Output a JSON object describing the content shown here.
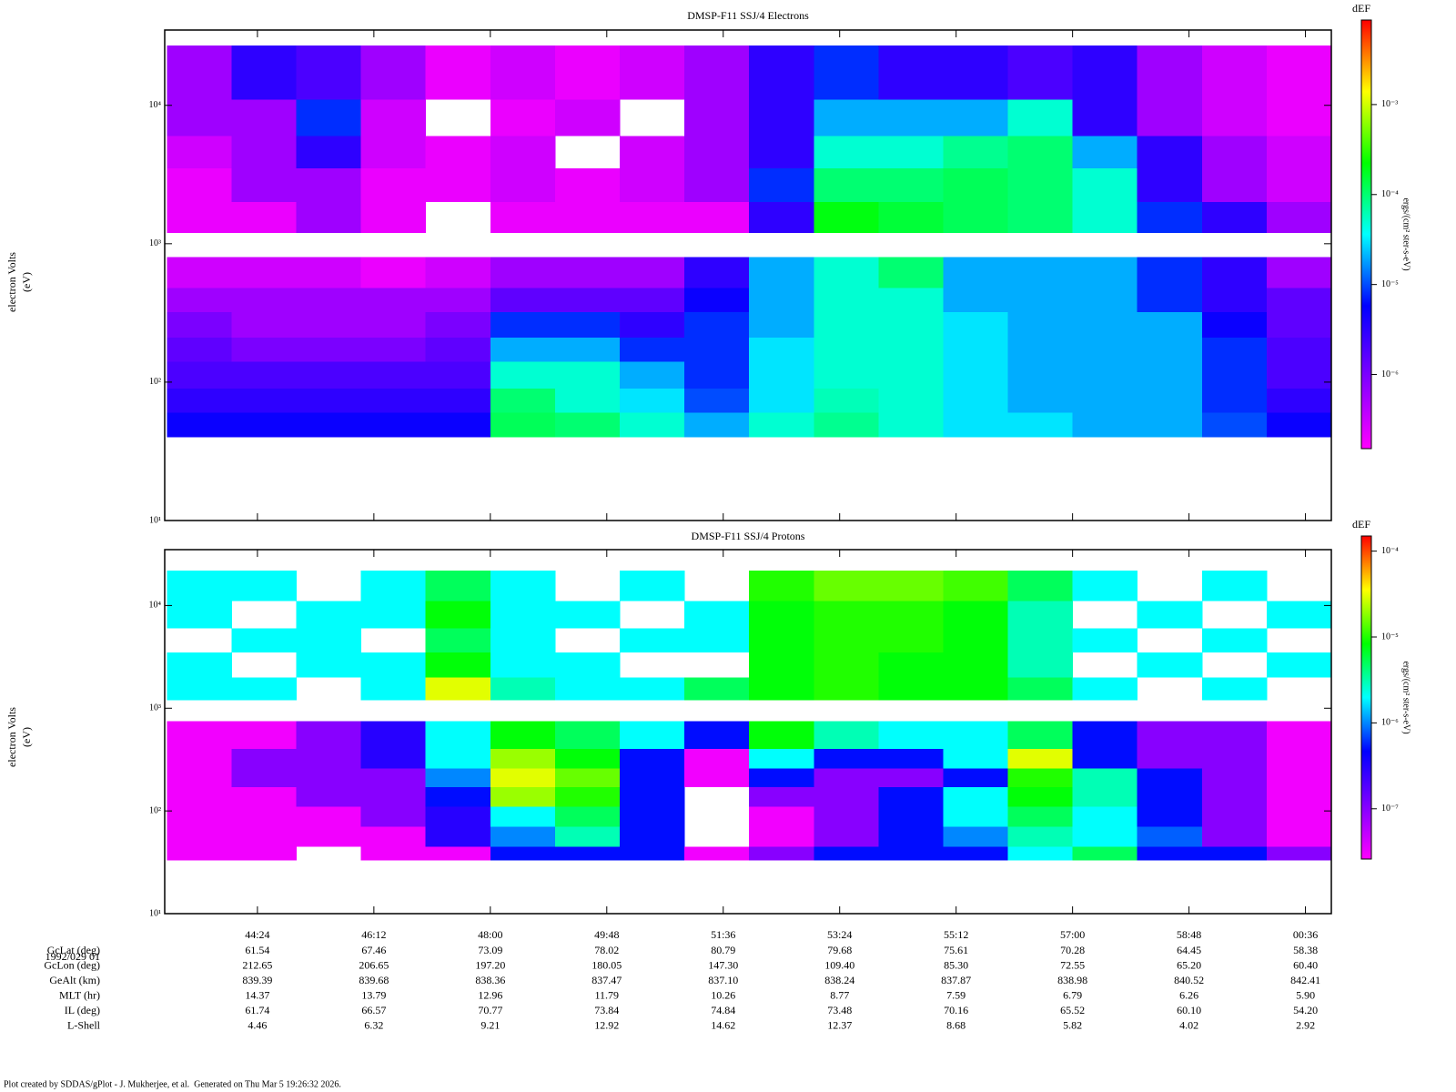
{
  "chart_data": [
    {
      "type": "spectrogram",
      "title": "DMSP-F11 SSJ/4 Electrons",
      "ylabel": [
        "electron Volts",
        "(eV)"
      ],
      "log_y": true,
      "xlim": [
        2578,
        3660
      ],
      "xticks": [
        2664,
        2772,
        2880,
        2988,
        3096,
        3204,
        3312,
        3420,
        3528,
        3636
      ],
      "ylim": [
        10,
        35000
      ],
      "yticks": [
        {
          "value": 10,
          "label": "10¹"
        },
        {
          "value": 100,
          "label": "10²"
        },
        {
          "value": 1000,
          "label": "10³"
        },
        {
          "value": 10000,
          "label": "10⁴"
        }
      ],
      "xbins": [
        2580,
        2640,
        2700,
        2760,
        2820,
        2880,
        2940,
        3000,
        3060,
        3120,
        3180,
        3240,
        3300,
        3360,
        3420,
        3480,
        3540,
        3600,
        3660
      ],
      "ybins": [
        [
          40,
          60
        ],
        [
          60,
          90
        ],
        [
          90,
          140
        ],
        [
          140,
          210
        ],
        [
          210,
          320
        ],
        [
          320,
          480
        ],
        [
          480,
          800
        ],
        [
          1200,
          2000
        ],
        [
          2000,
          3500
        ],
        [
          3500,
          6000
        ],
        [
          6000,
          11000
        ],
        [
          11000,
          27000
        ]
      ],
      "z": [
        [
          5e-06,
          5e-06,
          5e-06,
          5e-06,
          5e-06,
          0.00012,
          0.0001,
          5e-05,
          2e-05,
          5e-05,
          8e-05,
          5e-05,
          3e-05,
          3e-05,
          2e-05,
          2e-05,
          1e-05,
          5e-06
        ],
        [
          3e-06,
          3e-06,
          3e-06,
          3e-06,
          3e-06,
          0.0001,
          5e-05,
          3e-05,
          1e-05,
          3e-05,
          6e-05,
          5e-05,
          3e-05,
          2e-05,
          2e-05,
          2e-05,
          8e-06,
          3e-06
        ],
        [
          2e-06,
          2e-06,
          2e-06,
          2e-06,
          2e-06,
          5e-05,
          5e-05,
          2e-05,
          8e-06,
          3e-05,
          5e-05,
          5e-05,
          3e-05,
          2e-05,
          2e-05,
          2e-05,
          8e-06,
          2e-06
        ],
        [
          1.5e-06,
          1e-06,
          1e-06,
          1e-06,
          1.5e-06,
          2e-05,
          2e-05,
          8e-06,
          8e-06,
          3e-05,
          5e-05,
          5e-05,
          3e-05,
          2e-05,
          2e-05,
          2e-05,
          8e-06,
          2e-06
        ],
        [
          1e-06,
          6e-07,
          6e-07,
          6e-07,
          1e-06,
          8e-06,
          8e-06,
          3e-06,
          8e-06,
          2e-05,
          5e-05,
          5e-05,
          3e-05,
          2e-05,
          2e-05,
          2e-05,
          5e-06,
          1.5e-06
        ],
        [
          6e-07,
          6e-07,
          6e-07,
          6e-07,
          6e-07,
          1.5e-06,
          1.5e-06,
          1.5e-06,
          5e-06,
          2e-05,
          5e-05,
          5e-05,
          2e-05,
          2e-05,
          2e-05,
          8e-06,
          3e-06,
          1.5e-06
        ],
        [
          3e-07,
          3e-07,
          3e-07,
          2e-07,
          3e-07,
          6e-07,
          6e-07,
          6e-07,
          3e-06,
          2e-05,
          5e-05,
          0.0001,
          2e-05,
          2e-05,
          2e-05,
          8e-06,
          3e-06,
          6e-07
        ],
        [
          2e-07,
          2e-07,
          6e-07,
          2e-07,
          null,
          2e-07,
          2e-07,
          2e-07,
          2e-07,
          3e-06,
          0.0002,
          0.00015,
          0.00012,
          0.0001,
          5e-05,
          8e-06,
          3e-06,
          6e-07
        ],
        [
          2e-07,
          6e-07,
          6e-07,
          2e-07,
          2e-07,
          3e-07,
          2e-07,
          3e-07,
          6e-07,
          8e-06,
          0.0001,
          0.0001,
          0.00012,
          0.0001,
          5e-05,
          3e-06,
          6e-07,
          3e-07
        ],
        [
          3e-07,
          6e-07,
          3e-06,
          3e-07,
          2e-07,
          3e-07,
          null,
          3e-07,
          6e-07,
          3e-06,
          5e-05,
          5e-05,
          8e-05,
          0.0001,
          2e-05,
          3e-06,
          6e-07,
          3e-07
        ],
        [
          6e-07,
          6e-07,
          8e-06,
          3e-07,
          null,
          2e-07,
          3e-07,
          null,
          6e-07,
          3e-06,
          2e-05,
          2e-05,
          2e-05,
          5e-05,
          3e-06,
          6e-07,
          3e-07,
          2e-07
        ],
        [
          6e-07,
          3e-06,
          2e-06,
          6e-07,
          2e-07,
          3e-07,
          2e-07,
          3e-07,
          6e-07,
          3e-06,
          8e-06,
          3e-06,
          3e-06,
          2e-06,
          3e-06,
          6e-07,
          3e-07,
          2e-07
        ]
      ],
      "colorbar": {
        "label": "dEF",
        "title": "ergs/(cm² ster-s-eV)",
        "zlim": [
          1.5e-07,
          0.0087
        ],
        "log": true,
        "ticks": [
          {
            "value": 0.001,
            "label": "10⁻³"
          },
          {
            "value": 0.0001,
            "label": "10⁻⁴"
          },
          {
            "value": 1e-05,
            "label": "10⁻⁵"
          },
          {
            "value": 1e-06,
            "label": "10⁻⁶"
          }
        ],
        "colors": [
          "#ff00ff",
          "#8000ff",
          "#0000ff",
          "#00ffff",
          "#00ff00",
          "#ffff00",
          "#ff0000"
        ]
      }
    },
    {
      "type": "spectrogram",
      "title": "DMSP-F11 SSJ/4 Protons",
      "ylabel": [
        "electron Volts",
        "(eV)"
      ],
      "log_y": true,
      "xlim": [
        2578,
        3660
      ],
      "xticks": [
        {
          "value": 2664,
          "label": "44:24"
        },
        {
          "value": 2772,
          "label": "46:12"
        },
        {
          "value": 2880,
          "label": "48:00"
        },
        {
          "value": 2988,
          "label": "49:48"
        },
        {
          "value": 3096,
          "label": "51:36"
        },
        {
          "value": 3204,
          "label": "53:24"
        },
        {
          "value": 3312,
          "label": "55:12"
        },
        {
          "value": 3420,
          "label": "57:00"
        },
        {
          "value": 3528,
          "label": "58:48"
        },
        {
          "value": 3636,
          "label": "00:36"
        }
      ],
      "ylim": [
        10,
        35000
      ],
      "yticks": [
        {
          "value": 10,
          "label": "10¹"
        },
        {
          "value": 100,
          "label": "10²"
        },
        {
          "value": 1000,
          "label": "10³"
        },
        {
          "value": 10000,
          "label": "10⁴"
        }
      ],
      "xbins": [
        2580,
        2640,
        2700,
        2760,
        2820,
        2880,
        2940,
        3000,
        3060,
        3120,
        3180,
        3240,
        3300,
        3360,
        3420,
        3480,
        3540,
        3600,
        3660
      ],
      "ybins": [
        [
          33,
          45
        ],
        [
          45,
          70
        ],
        [
          70,
          110
        ],
        [
          110,
          170
        ],
        [
          170,
          260
        ],
        [
          260,
          400
        ],
        [
          400,
          750
        ],
        [
          1200,
          2000
        ],
        [
          2000,
          3500
        ],
        [
          3500,
          6000
        ],
        [
          6000,
          11000
        ],
        [
          11000,
          22000
        ]
      ],
      "z": [
        [
          3e-08,
          3e-08,
          null,
          3e-08,
          3e-08,
          5e-07,
          5e-07,
          5e-07,
          3e-08,
          1e-07,
          5e-07,
          5e-07,
          5e-07,
          2e-06,
          5e-06,
          5e-07,
          5e-07,
          1e-07
        ],
        [
          3e-08,
          3e-08,
          3e-08,
          3e-08,
          3e-07,
          1e-06,
          3e-06,
          5e-07,
          null,
          3e-08,
          1e-07,
          5e-07,
          1e-06,
          3e-06,
          2e-06,
          8e-07,
          1e-07,
          3e-08
        ],
        [
          3e-08,
          3e-08,
          3e-08,
          1e-07,
          3e-07,
          2e-06,
          5e-06,
          5e-07,
          null,
          3e-08,
          1e-07,
          5e-07,
          2e-06,
          5e-06,
          2e-06,
          5e-07,
          1e-07,
          3e-08
        ],
        [
          3e-08,
          3e-08,
          1e-07,
          1e-07,
          5e-07,
          2e-05,
          1e-05,
          5e-07,
          null,
          1e-07,
          1e-07,
          5e-07,
          2e-06,
          8e-06,
          3e-06,
          5e-07,
          1e-07,
          3e-08
        ],
        [
          3e-08,
          1e-07,
          1e-07,
          1e-07,
          1e-06,
          3e-05,
          1.5e-05,
          5e-07,
          3e-08,
          5e-07,
          1e-07,
          1e-07,
          5e-07,
          1e-05,
          3e-06,
          5e-07,
          1e-07,
          3e-08
        ],
        [
          3e-08,
          1e-07,
          1e-07,
          3e-07,
          2e-06,
          2e-05,
          8e-06,
          5e-07,
          3e-08,
          2e-06,
          5e-07,
          5e-07,
          2e-06,
          3e-05,
          5e-07,
          1e-07,
          1e-07,
          3e-08
        ],
        [
          3e-08,
          3e-08,
          1e-07,
          3e-07,
          2e-06,
          8e-06,
          5e-06,
          2e-06,
          5e-07,
          8e-06,
          3e-06,
          2e-06,
          2e-06,
          5e-06,
          5e-07,
          1e-07,
          1e-07,
          3e-08
        ],
        [
          2e-06,
          2e-06,
          null,
          2e-06,
          3e-05,
          3e-06,
          2e-06,
          2e-06,
          5e-06,
          8e-06,
          1e-05,
          8e-06,
          8e-06,
          5e-06,
          2e-06,
          null,
          2e-06,
          null
        ],
        [
          2e-06,
          null,
          2e-06,
          2e-06,
          8e-06,
          2e-06,
          2e-06,
          null,
          null,
          8e-06,
          1e-05,
          8e-06,
          8e-06,
          3e-06,
          null,
          2e-06,
          null,
          2e-06
        ],
        [
          null,
          2e-06,
          2e-06,
          null,
          5e-06,
          2e-06,
          null,
          2e-06,
          2e-06,
          8e-06,
          1e-05,
          1e-05,
          8e-06,
          3e-06,
          2e-06,
          null,
          2e-06,
          null
        ],
        [
          2e-06,
          null,
          2e-06,
          2e-06,
          8e-06,
          2e-06,
          2e-06,
          null,
          2e-06,
          8e-06,
          1e-05,
          1e-05,
          8e-06,
          3e-06,
          null,
          2e-06,
          null,
          2e-06
        ],
        [
          2e-06,
          2e-06,
          null,
          2e-06,
          5e-06,
          2e-06,
          null,
          2e-06,
          null,
          1e-05,
          1.5e-05,
          1.5e-05,
          1.2e-05,
          5e-06,
          2e-06,
          null,
          2e-06,
          null
        ]
      ],
      "colorbar": {
        "label": "dEF",
        "title": "ergs/(cm² ster-s-eV)",
        "zlim": [
          2.6e-08,
          0.00015
        ],
        "log": true,
        "ticks": [
          {
            "value": 0.0001,
            "label": "10⁻⁴"
          },
          {
            "value": 1e-05,
            "label": "10⁻⁵"
          },
          {
            "value": 1e-06,
            "label": "10⁻⁶"
          },
          {
            "value": 1e-07,
            "label": "10⁻⁷"
          }
        ],
        "colors": [
          "#ff00ff",
          "#8000ff",
          "#0000ff",
          "#00ffff",
          "#00ff00",
          "#ffff00",
          "#ff0000"
        ]
      }
    }
  ],
  "ephemeris": {
    "time_label": "1992/029 01",
    "rows": [
      {
        "label": "GcLat (deg)",
        "values": [
          "61.54",
          "67.46",
          "73.09",
          "78.02",
          "80.79",
          "79.68",
          "75.61",
          "70.28",
          "64.45",
          "58.38"
        ]
      },
      {
        "label": "GcLon (deg)",
        "values": [
          "212.65",
          "206.65",
          "197.20",
          "180.05",
          "147.30",
          "109.40",
          "85.30",
          "72.55",
          "65.20",
          "60.40"
        ]
      },
      {
        "label": "GeAlt (km)",
        "values": [
          "839.39",
          "839.68",
          "838.36",
          "837.47",
          "837.10",
          "838.24",
          "837.87",
          "838.98",
          "840.52",
          "842.41"
        ]
      },
      {
        "label": "MLT (hr)",
        "values": [
          "14.37",
          "13.79",
          "12.96",
          "11.79",
          "10.26",
          "8.77",
          "7.59",
          "6.79",
          "6.26",
          "5.90"
        ]
      },
      {
        "label": "IL (deg)",
        "values": [
          "61.74",
          "66.57",
          "70.77",
          "73.84",
          "74.84",
          "73.48",
          "70.16",
          "65.52",
          "60.10",
          "54.20"
        ]
      },
      {
        "label": "L-Shell",
        "values": [
          "4.46",
          "6.32",
          "9.21",
          "12.92",
          "14.62",
          "12.37",
          "8.68",
          "5.82",
          "4.02",
          "2.92"
        ]
      }
    ]
  },
  "footer": "Plot created by SDDAS/gPlot - J. Mukherjee, et al.  Generated on Thu Mar 5 19:26:32 2026."
}
